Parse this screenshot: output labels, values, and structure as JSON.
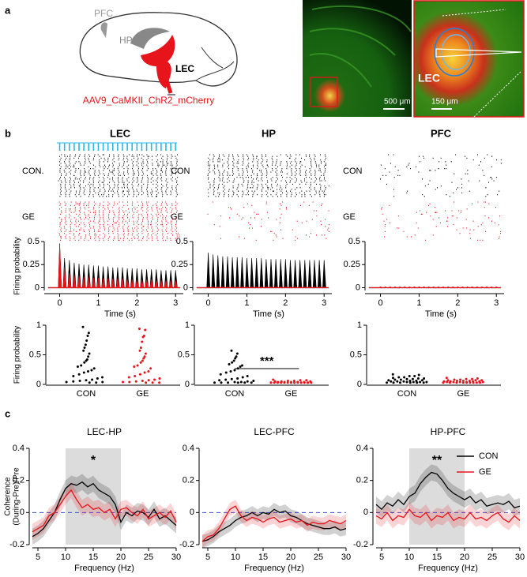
{
  "panel_labels": [
    "a",
    "b",
    "c"
  ],
  "schematic": {
    "labels": [
      "PFC",
      "HP",
      "LEC"
    ],
    "virus": "AAV9_CaMKII_ChR2_mCherry"
  },
  "histology": {
    "scale_bars": [
      "500 μm",
      "150 μm"
    ],
    "region": "LEC"
  },
  "chart_data": [
    {
      "type": "spike-line",
      "title": "LEC",
      "raster_labels": [
        "CON.",
        "GE"
      ],
      "stimulus": true,
      "ylabel": "Firing probability",
      "xlabel": "Time (s)",
      "x": [
        0,
        0.125,
        0.25,
        0.375,
        0.5,
        0.625,
        0.75,
        0.875,
        1,
        1.125,
        1.25,
        1.375,
        1.5,
        1.625,
        1.75,
        1.875,
        2,
        2.125,
        2.25,
        2.375,
        2.5,
        2.625,
        2.75,
        2.875,
        3
      ],
      "series": [
        {
          "color": "#000000",
          "values": [
            0.48,
            0.32,
            0.3,
            0.27,
            0.26,
            0.25,
            0.25,
            0.24,
            0.24,
            0.23,
            0.23,
            0.22,
            0.22,
            0.22,
            0.21,
            0.21,
            0.21,
            0.2,
            0.2,
            0.2,
            0.2,
            0.19,
            0.19,
            0.19,
            0.19
          ]
        },
        {
          "color": "#e8141b",
          "values": [
            0.46,
            0.22,
            0.16,
            0.14,
            0.13,
            0.12,
            0.12,
            0.11,
            0.11,
            0.1,
            0.1,
            0.1,
            0.1,
            0.1,
            0.09,
            0.09,
            0.09,
            0.09,
            0.09,
            0.09,
            0.08,
            0.08,
            0.08,
            0.08,
            0.08
          ]
        }
      ],
      "xlim": [
        -0.4,
        3.2
      ],
      "xticks": [
        0,
        1,
        2,
        3
      ],
      "ylim": [
        -0.03,
        0.5
      ],
      "yticks": [
        0,
        0.25,
        0.5
      ]
    },
    {
      "type": "spike-line",
      "title": "HP",
      "raster_labels": [
        "CON",
        "GE"
      ],
      "stimulus": false,
      "xlabel": "Time (s)",
      "x": [
        0,
        0.125,
        0.25,
        0.375,
        0.5,
        0.625,
        0.75,
        0.875,
        1,
        1.125,
        1.25,
        1.375,
        1.5,
        1.625,
        1.75,
        1.875,
        2,
        2.125,
        2.25,
        2.375,
        2.5,
        2.625,
        2.75,
        2.875,
        3
      ],
      "series": [
        {
          "color": "#000000",
          "values": [
            0.38,
            0.36,
            0.35,
            0.34,
            0.34,
            0.33,
            0.33,
            0.33,
            0.32,
            0.32,
            0.32,
            0.32,
            0.31,
            0.31,
            0.31,
            0.31,
            0.31,
            0.3,
            0.3,
            0.3,
            0.3,
            0.3,
            0.3,
            0.3,
            0.3
          ]
        },
        {
          "color": "#e8141b",
          "values": [
            0.01,
            0.01,
            0.01,
            0.01,
            0.01,
            0.01,
            0.01,
            0.01,
            0.01,
            0.01,
            0.01,
            0.01,
            0.01,
            0.01,
            0.01,
            0.01,
            0.01,
            0.01,
            0.01,
            0.01,
            0.01,
            0.01,
            0.01,
            0.01,
            0.01
          ]
        }
      ],
      "xlim": [
        -0.4,
        3.2
      ],
      "xticks": [
        0,
        1,
        2,
        3
      ],
      "ylim": [
        -0.03,
        0.5
      ],
      "yticks": [
        0,
        0.25,
        0.5
      ]
    },
    {
      "type": "spike-line",
      "title": "PFC",
      "raster_labels": [
        "CON",
        "GE"
      ],
      "stimulus": false,
      "xlabel": "Time (s)",
      "x": [
        0,
        0.125,
        0.25,
        0.375,
        0.5,
        0.625,
        0.75,
        0.875,
        1,
        1.125,
        1.25,
        1.375,
        1.5,
        1.625,
        1.75,
        1.875,
        2,
        2.125,
        2.25,
        2.375,
        2.5,
        2.625,
        2.75,
        2.875,
        3
      ],
      "series": [
        {
          "color": "#000000",
          "values": [
            0.01,
            0.01,
            0.01,
            0.01,
            0.01,
            0.01,
            0.01,
            0.01,
            0.01,
            0.01,
            0.01,
            0.01,
            0.01,
            0.01,
            0.01,
            0.01,
            0.01,
            0.01,
            0.01,
            0.01,
            0.01,
            0.01,
            0.01,
            0.01,
            0.01
          ]
        },
        {
          "color": "#e8141b",
          "values": [
            0.01,
            0.01,
            0.01,
            0.01,
            0.01,
            0.01,
            0.01,
            0.01,
            0.01,
            0.01,
            0.01,
            0.01,
            0.01,
            0.01,
            0.01,
            0.01,
            0.01,
            0.01,
            0.01,
            0.01,
            0.01,
            0.01,
            0.01,
            0.01,
            0.01
          ]
        }
      ],
      "xlim": [
        -0.4,
        3.2
      ],
      "xticks": [
        0,
        1,
        2,
        3
      ],
      "ylim": [
        -0.03,
        0.5
      ],
      "yticks": [
        0,
        0.25,
        0.5
      ]
    },
    {
      "type": "strip",
      "ylabel": "Firing probability",
      "categories": [
        "CON",
        "GE"
      ],
      "colors": [
        "#000000",
        "#e8141b"
      ],
      "values": [
        [
          0.95,
          0.85,
          0.8,
          0.72,
          0.65,
          0.6,
          0.55,
          0.5,
          0.45,
          0.4,
          0.38,
          0.35,
          0.3,
          0.28,
          0.25,
          0.22,
          0.2,
          0.18,
          0.15,
          0.12,
          0.1,
          0.08,
          0.06,
          0.05,
          0.04,
          0.03,
          0.02,
          0.02,
          0.01,
          0.01
        ],
        [
          0.92,
          0.9,
          0.8,
          0.78,
          0.7,
          0.6,
          0.55,
          0.5,
          0.45,
          0.42,
          0.38,
          0.35,
          0.3,
          0.28,
          0.25,
          0.2,
          0.18,
          0.15,
          0.12,
          0.1,
          0.08,
          0.06,
          0.05,
          0.04,
          0.03,
          0.02,
          0.02,
          0.01,
          0.01,
          0.01
        ]
      ],
      "ylim": [
        0,
        1
      ],
      "yticks": [
        0,
        0.5,
        1
      ]
    },
    {
      "type": "strip",
      "categories": [
        "CON",
        "GE"
      ],
      "colors": [
        "#000000",
        "#e8141b"
      ],
      "annotation": "***",
      "values": [
        [
          0.55,
          0.5,
          0.45,
          0.42,
          0.38,
          0.35,
          0.32,
          0.3,
          0.28,
          0.25,
          0.22,
          0.2,
          0.18,
          0.15,
          0.12,
          0.1,
          0.08,
          0.07,
          0.06,
          0.05,
          0.04,
          0.03,
          0.02,
          0.02,
          0.01,
          0.01,
          0.01,
          0.01,
          0.01,
          0.01
        ],
        [
          0.06,
          0.05,
          0.05,
          0.04,
          0.04,
          0.03,
          0.03,
          0.03,
          0.02,
          0.02,
          0.02,
          0.02,
          0.02,
          0.01,
          0.01,
          0.01,
          0.01,
          0.01,
          0.01,
          0.01,
          0.01,
          0.01,
          0.01,
          0.01,
          0.01,
          0.01,
          0.01,
          0.01,
          0.01,
          0.01
        ]
      ],
      "ylim": [
        0,
        1
      ],
      "yticks": [
        0,
        0.5,
        1
      ]
    },
    {
      "type": "strip",
      "categories": [
        "CON",
        "GE"
      ],
      "colors": [
        "#000000",
        "#e8141b"
      ],
      "values": [
        [
          0.15,
          0.14,
          0.12,
          0.12,
          0.1,
          0.1,
          0.09,
          0.08,
          0.08,
          0.07,
          0.07,
          0.06,
          0.06,
          0.05,
          0.05,
          0.04,
          0.04,
          0.03,
          0.03,
          0.03,
          0.02,
          0.02,
          0.02,
          0.02,
          0.01,
          0.01,
          0.01,
          0.01,
          0.01,
          0.01
        ],
        [
          0.09,
          0.08,
          0.07,
          0.07,
          0.06,
          0.06,
          0.05,
          0.05,
          0.05,
          0.04,
          0.04,
          0.04,
          0.03,
          0.03,
          0.03,
          0.03,
          0.02,
          0.02,
          0.02,
          0.02,
          0.02,
          0.01,
          0.01,
          0.01,
          0.01,
          0.01,
          0.01,
          0.01,
          0.01,
          0.01
        ]
      ],
      "ylim": [
        0,
        1
      ],
      "yticks": [
        0,
        0.5,
        1
      ]
    },
    {
      "type": "line",
      "title": "LEC-HP",
      "xlabel": "Frequency (Hz)",
      "ylabel": [
        "Coherence",
        "(During-Pre)/Pre"
      ],
      "shade": [
        10,
        20
      ],
      "annotation": "*",
      "x": [
        4,
        5,
        6,
        7,
        8,
        9,
        10,
        11,
        12,
        13,
        14,
        15,
        16,
        17,
        18,
        19,
        20,
        21,
        22,
        23,
        24,
        25,
        26,
        27,
        28,
        29,
        30
      ],
      "series": [
        {
          "color": "#000000",
          "sem": 0.05,
          "values": [
            -0.15,
            -0.13,
            -0.1,
            -0.05,
            0,
            0.08,
            0.15,
            0.18,
            0.17,
            0.19,
            0.16,
            0.18,
            0.14,
            0.12,
            0.1,
            0.05,
            -0.06,
            0,
            -0.02,
            0.01,
            0,
            -0.03,
            0.02,
            -0.04,
            -0.02,
            -0.05,
            -0.08
          ]
        },
        {
          "color": "#e8141b",
          "sem": 0.05,
          "values": [
            -0.12,
            -0.1,
            -0.08,
            -0.02,
            0,
            0.05,
            0.1,
            0.14,
            0.08,
            0.03,
            0.05,
            0.02,
            0.03,
            0,
            0.02,
            -0.04,
            0.02,
            0.03,
            0,
            -0.02,
            0.02,
            -0.04,
            -0.02,
            0,
            -0.03,
            0.01,
            -0.06
          ]
        }
      ],
      "xlim": [
        4,
        30
      ],
      "xticks": [
        5,
        10,
        15,
        20,
        25,
        30
      ],
      "ylim": [
        -0.2,
        0.4
      ],
      "yticks": [
        -0.2,
        0,
        0.2,
        0.4
      ]
    },
    {
      "type": "line",
      "title": "LEC-PFC",
      "xlabel": "Frequency (Hz)",
      "x": [
        4,
        5,
        6,
        7,
        8,
        9,
        10,
        11,
        12,
        13,
        14,
        15,
        16,
        17,
        18,
        19,
        20,
        21,
        22,
        23,
        24,
        25,
        26,
        27,
        28,
        29,
        30
      ],
      "series": [
        {
          "color": "#000000",
          "sem": 0.04,
          "values": [
            -0.18,
            -0.17,
            -0.15,
            -0.12,
            -0.1,
            -0.08,
            -0.05,
            -0.03,
            -0.02,
            0,
            -0.02,
            0,
            -0.01,
            0.02,
            0,
            0.01,
            -0.02,
            -0.03,
            -0.05,
            -0.07,
            -0.08,
            -0.09,
            -0.1,
            -0.1,
            -0.09,
            -0.11,
            -0.1
          ]
        },
        {
          "color": "#e8141b",
          "sem": 0.04,
          "values": [
            -0.18,
            -0.15,
            -0.14,
            -0.1,
            -0.04,
            0.02,
            0.04,
            -0.02,
            -0.05,
            -0.03,
            -0.04,
            -0.06,
            -0.04,
            -0.03,
            -0.06,
            -0.05,
            -0.04,
            -0.06,
            -0.05,
            -0.08,
            -0.06,
            -0.07,
            -0.07,
            -0.05,
            -0.06,
            -0.07,
            -0.05
          ]
        }
      ],
      "xlim": [
        4,
        30
      ],
      "xticks": [
        5,
        10,
        15,
        20,
        25,
        30
      ],
      "ylim": [
        -0.2,
        0.4
      ],
      "yticks": [
        -0.2,
        0,
        0.2,
        0.4
      ]
    },
    {
      "type": "line",
      "title": "HP-PFC",
      "xlabel": "Frequency (Hz)",
      "shade": [
        10,
        20
      ],
      "annotation": "**",
      "legend": "upper right",
      "x": [
        4,
        5,
        6,
        7,
        8,
        9,
        10,
        11,
        12,
        13,
        14,
        15,
        16,
        17,
        18,
        19,
        20,
        21,
        22,
        23,
        24,
        25,
        26,
        27,
        28,
        29,
        30
      ],
      "series": [
        {
          "name": "CON",
          "color": "#000000",
          "sem": 0.05,
          "values": [
            0.05,
            0.02,
            0.06,
            0.04,
            0.08,
            0.05,
            0.1,
            0.12,
            0.18,
            0.22,
            0.25,
            0.24,
            0.2,
            0.15,
            0.12,
            0.1,
            0.08,
            0.1,
            0.06,
            0.08,
            0.04,
            0.05,
            0.06,
            0.05,
            0.07,
            0.03,
            0.04
          ]
        },
        {
          "name": "GE",
          "color": "#e8141b",
          "sem": 0.05,
          "values": [
            -0.02,
            -0.04,
            0,
            -0.05,
            -0.02,
            -0.03,
            0.02,
            -0.02,
            -0.03,
            0,
            -0.05,
            -0.02,
            -0.03,
            0,
            -0.05,
            -0.03,
            -0.04,
            0,
            -0.04,
            -0.03,
            -0.05,
            -0.02,
            0,
            -0.04,
            -0.06,
            -0.02,
            -0.05
          ]
        }
      ],
      "xlim": [
        4,
        30
      ],
      "xticks": [
        5,
        10,
        15,
        20,
        25,
        30
      ],
      "ylim": [
        -0.2,
        0.4
      ],
      "yticks": [
        -0.2,
        0,
        0.2,
        0.4
      ]
    }
  ]
}
